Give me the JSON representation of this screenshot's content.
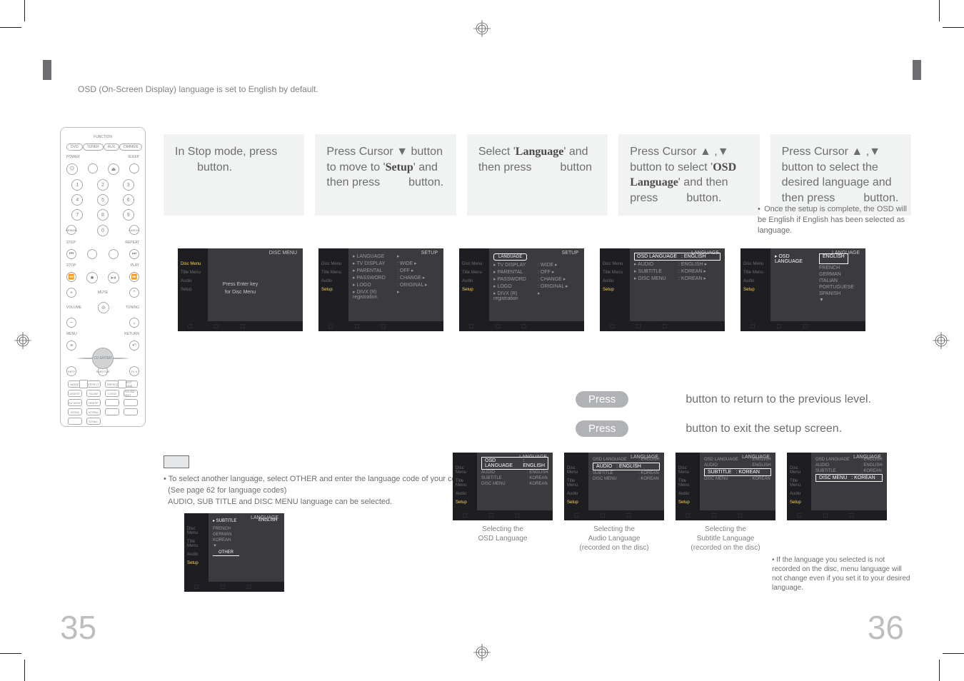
{
  "intro_text": "OSD (On-Screen Display) language is set to English by default.",
  "steps": [
    {
      "text_parts": [
        "In Stop mode, press",
        "button."
      ]
    },
    {
      "text_parts": [
        "Press Cursor ▼ button to move to '",
        "Setup",
        "' and then press",
        "button."
      ]
    },
    {
      "text_parts": [
        "Select '",
        "Language",
        "' and then press",
        "button"
      ]
    },
    {
      "text_parts": [
        "Press Cursor ▲ ,▼ button to select '",
        "OSD Language",
        "' and then press",
        "button."
      ]
    },
    {
      "text_parts": [
        "Press Cursor ▲ ,▼ button to select the desired language and then press",
        "button."
      ]
    }
  ],
  "osd_complete_note": "Once the setup is complete, the OSD will be English if English has been selected as language.",
  "osd_side_items": [
    "Disc Menu",
    "Title Menu",
    "Audio",
    "Setup"
  ],
  "osd1": {
    "header": "DISC MENU",
    "center": [
      "Press Enter key",
      "for Disc Menu"
    ]
  },
  "osd2": {
    "header": "SETUP",
    "rows": [
      {
        "k": "▸ LANGUAGE",
        "v": "▸"
      },
      {
        "k": "▸ TV DISPLAY",
        "v": ": WIDE ▸"
      },
      {
        "k": "▸ PARENTAL",
        "v": ": OFF ▸"
      },
      {
        "k": "▸ PASSWORD",
        "v": ": CHANGE ▸"
      },
      {
        "k": "▸ LOGO",
        "v": ": ORIGINAL ▸"
      },
      {
        "k": "▸ DIVX (R) registration",
        "v": "▸"
      }
    ]
  },
  "osd3": {
    "header": "SETUP",
    "rows": [
      {
        "k": "LANGUAGE",
        "v": "",
        "hi": true,
        "pill": true
      },
      {
        "k": "▸ TV DISPLAY",
        "v": ": WIDE ▸"
      },
      {
        "k": "▸ PARENTAL",
        "v": ": OFF ▸"
      },
      {
        "k": "▸ PASSWORD",
        "v": ": CHANGE ▸"
      },
      {
        "k": "▸ LOGO",
        "v": ": ORIGINAL ▸"
      },
      {
        "k": "▸ DIVX (R) registration",
        "v": "▸"
      }
    ]
  },
  "osd4": {
    "header": "LANGUAGE",
    "rows": [
      {
        "k": "OSD LANGUAGE",
        "v": ": ENGLISH",
        "hi": true,
        "box": true
      },
      {
        "k": "▸ AUDIO",
        "v": ": ENGLISH ▸"
      },
      {
        "k": "▸ SUBTITLE",
        "v": ": KOREAN ▸"
      },
      {
        "k": "▸ DISC MENU",
        "v": ": KOREAN ▸"
      }
    ]
  },
  "osd5": {
    "header": "LANGUAGE",
    "rows": [
      {
        "k": "▸ OSD LANGUAGE",
        "v": "ENGLISH",
        "hi": true,
        "sel": true
      }
    ],
    "langs": [
      "FRENCH",
      "GERMAN",
      "ITALIAN",
      "PORTUGUESE",
      "SPANISH",
      "▼"
    ]
  },
  "press_lines": [
    {
      "pill": "Press",
      "text": "button to return to the previous level."
    },
    {
      "pill": "Press",
      "text": "button to exit the setup screen."
    }
  ],
  "other_note_lines": [
    "To select another language, select OTHER and enter the language code of your country.",
    "(See page 62 for language codes)",
    "AUDIO, SUB TITLE and DISC MENU language can be selected."
  ],
  "osd_other": {
    "header": "LANGUAGE",
    "rows": [
      {
        "k": "▸ SUBTITLE",
        "v": "ENGLISH",
        "hi": true
      }
    ],
    "langs": [
      "FRENCH",
      "GERMAN",
      "KOREAN",
      "▼",
      "OTHER"
    ]
  },
  "bottom_osds": [
    {
      "header": "LANGUAGE",
      "hi": {
        "k": "OSD LANGUAGE",
        "v": ": ENGLISH"
      },
      "rows": [
        {
          "k": "AUDIO",
          "v": ": ENGLISH"
        },
        {
          "k": "SUBTITLE",
          "v": ": KOREAN"
        },
        {
          "k": "DISC MENU",
          "v": ": KOREAN"
        }
      ],
      "caption": "Selecting the\nOSD Language"
    },
    {
      "header": "LANGUAGE",
      "rows0": {
        "k": "OSD LANGUAGE",
        "v": ": ENGLISH"
      },
      "hi": {
        "k": "AUDIO",
        "v": ": ENGLISH"
      },
      "rows": [
        {
          "k": "SUBTITLE",
          "v": ": KOREAN"
        },
        {
          "k": "DISC MENU",
          "v": ": KOREAN"
        }
      ],
      "caption": "Selecting the\nAudio Language\n(recorded on the disc)"
    },
    {
      "header": "LANGUAGE",
      "rows0": {
        "k": "OSD LANGUAGE",
        "v": ": ENGLISH"
      },
      "rows1": {
        "k": "AUDIO",
        "v": ": ENGLISH"
      },
      "hi": {
        "k": "SUBTITLE",
        "v": ": KOREAN"
      },
      "rows": [
        {
          "k": "DISC MENU",
          "v": ": KOREAN"
        }
      ],
      "caption": "Selecting the\nSubtitle Language\n(recorded on the disc)"
    },
    {
      "header": "LANGUAGE",
      "rows0": {
        "k": "OSD LANGUAGE",
        "v": ": ENGLISH"
      },
      "rows1": {
        "k": "AUDIO",
        "v": ": ENGLISH"
      },
      "rows2": {
        "k": "SUBTITLE",
        "v": ": KOREAN"
      },
      "hi": {
        "k": "DISC MENU",
        "v": ": KOREAN"
      },
      "caption": ""
    }
  ],
  "disc_note": "If the language you selected is not recorded on the disc, menu language will not change even if you set it to your desired language.",
  "remote": {
    "function": "FUNCTION",
    "top_row": [
      "DVD",
      "TUNER",
      "AUX",
      "DIMMER"
    ],
    "power": "POWER",
    "sleep": "SLEEP",
    "keypad": [
      "1",
      "2",
      "3",
      "4",
      "5",
      "6",
      "7",
      "8",
      "9",
      "0"
    ],
    "remain": "REMAIN",
    "cancel": "CANCEL",
    "step": "STEP",
    "repeat": "REPEAT",
    "stop": "STOP",
    "play": "PLAY",
    "mute": "MUTE",
    "volume": "VOLUME",
    "tuning": "TUNING",
    "menu": "MENU",
    "return": "RETURN",
    "enter": "CD\nENTER",
    "info": "INFO",
    "sub": "SUBTITLE",
    "pl": "PL II",
    "mini": [
      "MODE",
      "EFFECT",
      "DSP/EQ",
      "TEST TONE",
      "DIGEST",
      "SLOW",
      "LOGO",
      "SOUND EDIT",
      "EZ VIEW",
      "HDEFF",
      "",
      "",
      "ZOOM",
      "NT/PAL",
      "",
      "",
      "",
      "S.FALL",
      "",
      ""
    ]
  },
  "page_left": "35",
  "page_right": "36",
  "colors": {
    "box_bg": "#f1f2f2",
    "osd_bg": "#3a3a3f",
    "osd_side": "#1e1e22",
    "text": "#6d6e71",
    "pagenum": "#bcbec0"
  }
}
